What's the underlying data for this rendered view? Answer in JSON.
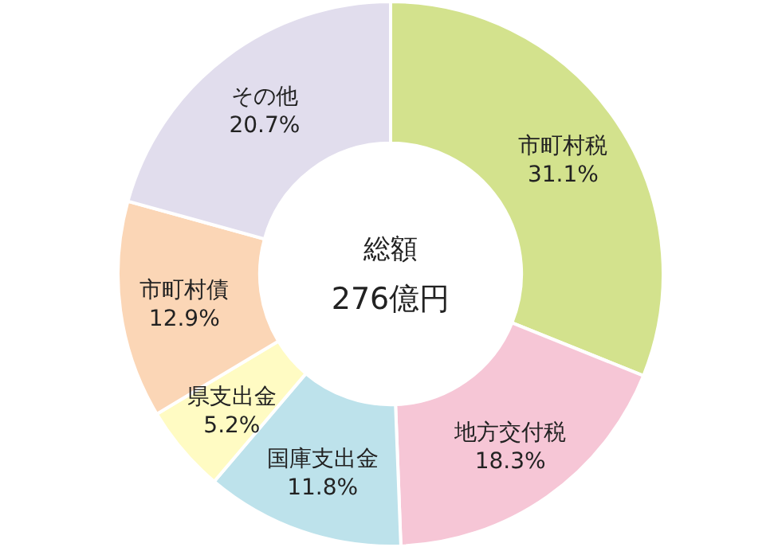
{
  "chart_data": {
    "type": "donut",
    "title": "総額",
    "subtitle": "276億円",
    "categories": [
      "市町村税",
      "地方交付税",
      "国庫支出金",
      "県支出金",
      "市町村債",
      "その他"
    ],
    "values": [
      31.1,
      18.3,
      11.8,
      5.2,
      12.9,
      20.7
    ],
    "colors": [
      "#d3e28d",
      "#f6c6d6",
      "#bde2eb",
      "#fffbc3",
      "#fbd6b6",
      "#e1dded"
    ],
    "value_labels": [
      "31.1%",
      "18.3%",
      "11.8%",
      "5.2%",
      "12.9%",
      "20.7%"
    ]
  }
}
